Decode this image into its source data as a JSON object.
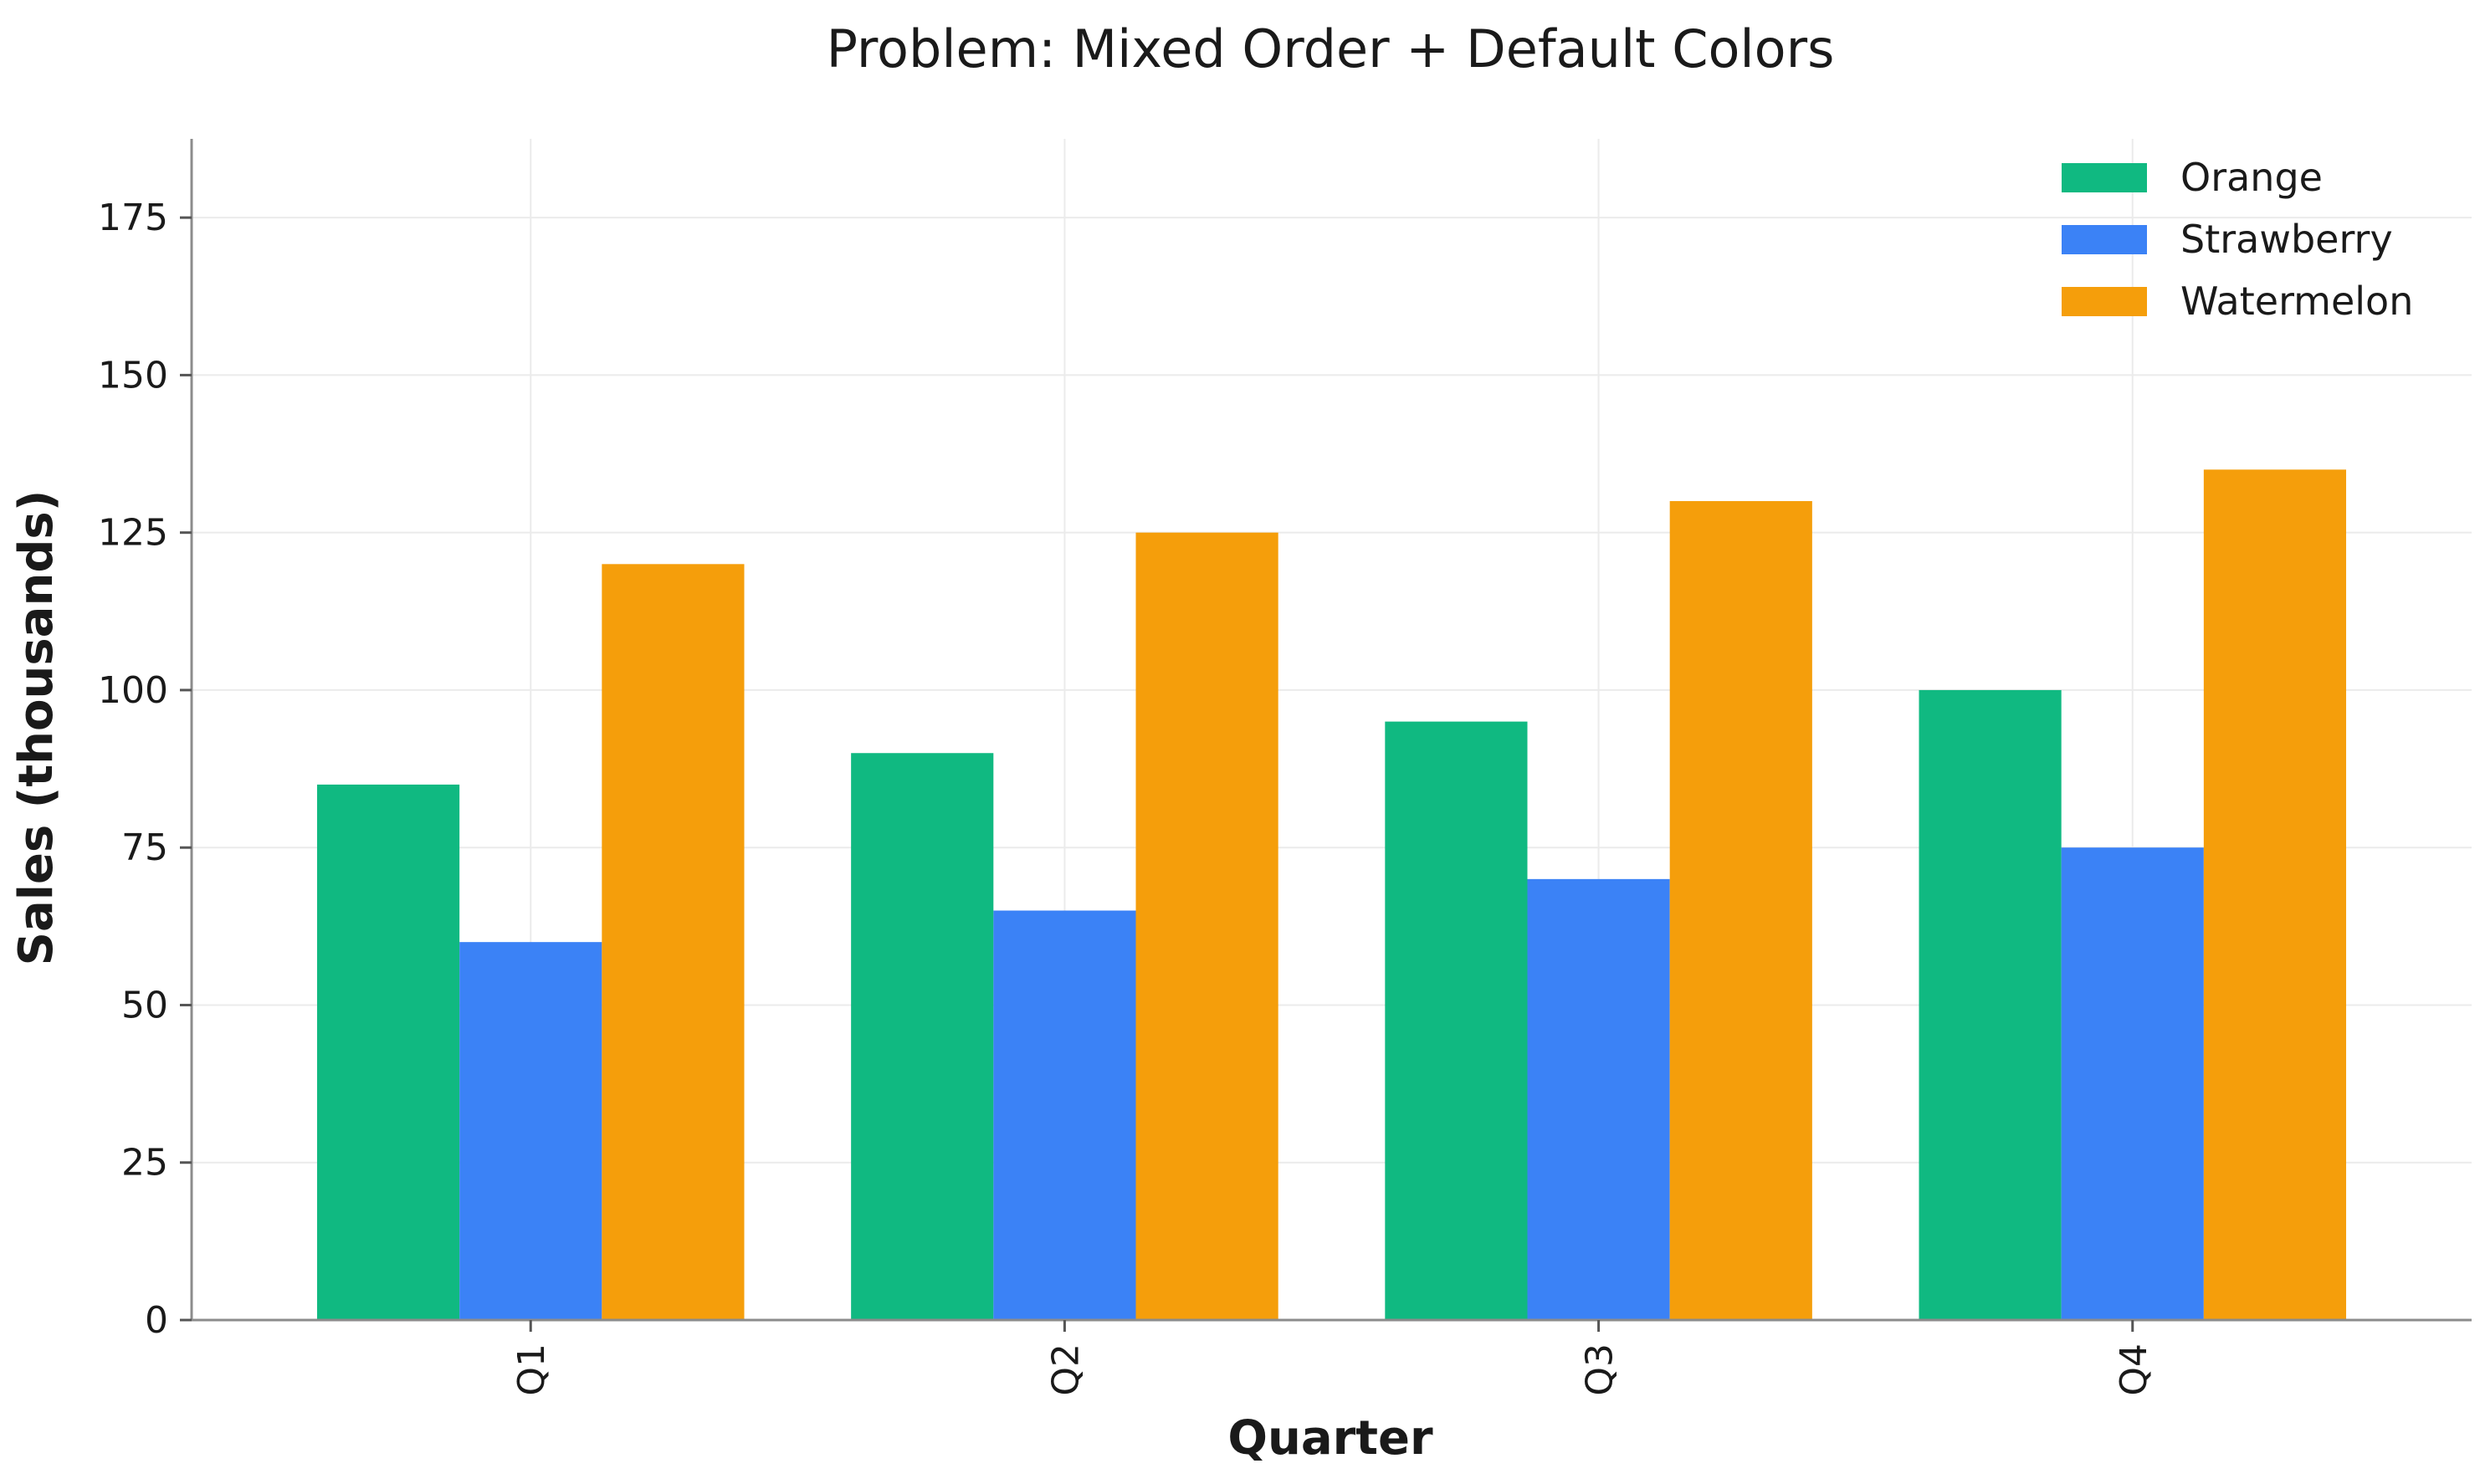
{
  "chart_data": {
    "type": "bar",
    "title": "Problem: Mixed Order + Default Colors",
    "xlabel": "Quarter",
    "ylabel": "Sales (thousands)",
    "categories": [
      "Q1",
      "Q2",
      "Q3",
      "Q4"
    ],
    "series": [
      {
        "name": "Orange",
        "color": "#10b981",
        "values": [
          85,
          90,
          95,
          100
        ]
      },
      {
        "name": "Strawberry",
        "color": "#3b82f6",
        "values": [
          60,
          65,
          70,
          75
        ]
      },
      {
        "name": "Watermelon",
        "color": "#f59e0b",
        "values": [
          120,
          125,
          130,
          135
        ]
      }
    ],
    "ylim": [
      0,
      187.5
    ],
    "yticks": [
      0,
      25,
      50,
      75,
      100,
      125,
      150,
      175
    ],
    "xtick_rotation": 90,
    "grid": true,
    "legend_position": "top-right"
  }
}
